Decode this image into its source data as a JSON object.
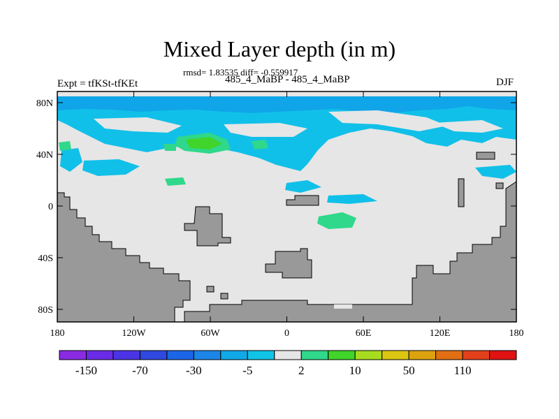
{
  "title": "Mixed Layer depth (in m)",
  "stats": "rmsd= 1.83535 diff= -0.559917",
  "subtitle": "485_4_MaBP - 485_4_MaBP",
  "left_label": "Expt = tfKSt-tfKEt",
  "right_label": "DJF",
  "map": {
    "lat_ticks": [
      "80N",
      "40N",
      "0",
      "40S",
      "80S"
    ],
    "lon_ticks": [
      "180",
      "120W",
      "60W",
      "0",
      "60E",
      "120E",
      "180"
    ],
    "colors": {
      "background_field": "#e6e6e6",
      "land": "#999999",
      "cyan": "#11c0e8",
      "light_blue": "#10a5e8",
      "green_light": "#2fd88a",
      "green": "#41d42a"
    }
  },
  "colorbar": {
    "colors": [
      "#8a2be2",
      "#6a2be8",
      "#4b34e6",
      "#2f49e0",
      "#1b66e8",
      "#1c86e8",
      "#11a8e8",
      "#10c4e8",
      "#e6e6e6",
      "#2fd88a",
      "#41d42a",
      "#a8dc1e",
      "#dcc612",
      "#dca30e",
      "#e27012",
      "#e2401a",
      "#e01212"
    ],
    "labels": [
      "-150",
      "-70",
      "-30",
      "-5",
      "2",
      "10",
      "50",
      "110"
    ]
  }
}
